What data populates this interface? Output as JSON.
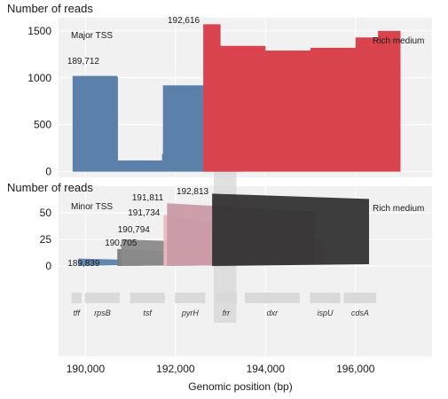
{
  "figure": {
    "xlabel": "Genomic position (bp)",
    "x_ticks": [
      "190,000",
      "192,000",
      "194,000",
      "196,000"
    ],
    "colors": {
      "rich_major_red": "#d9434e",
      "blue": "#5b81ab",
      "pink": "#eab7c0",
      "dark": "#333333",
      "mid_gray": "#8a8a8a",
      "highlight": "#d6d6d6",
      "gene": "#d9d9d9"
    }
  },
  "chart_data": [
    {
      "type": "area",
      "panel": "top",
      "title": "",
      "ylabel": "Number of reads",
      "panel_label": "Major TSS",
      "condition": "Rich medium",
      "ylim": [
        -60,
        1640
      ],
      "y_ticks": [
        0,
        500,
        1000,
        1500
      ],
      "xlim": [
        189400,
        197700
      ],
      "grid": true,
      "series": [
        {
          "name": "",
          "color": "#5b81ab",
          "tss": 189712,
          "tss_label": "189,712",
          "x": [
            189712,
            190700,
            190720,
            191700,
            191720,
            192800,
            193300,
            193500
          ],
          "y": [
            1020,
            1010,
            120,
            190,
            920,
            970,
            1010,
            1040
          ]
        },
        {
          "name": "",
          "color": "#d9434e",
          "tss": 192616,
          "tss_label": "192,616",
          "x": [
            192616,
            193000,
            194000,
            195000,
            196000,
            196500,
            197000
          ],
          "y": [
            1570,
            1340,
            1290,
            1320,
            1430,
            1500,
            1555
          ]
        }
      ]
    },
    {
      "type": "area",
      "panel": "bottom",
      "title": "",
      "ylabel": "Number of reads",
      "panel_label": "Minor TSS",
      "condition": "Rich medium",
      "ylim": [
        -15,
        75
      ],
      "y_ticks": [
        0,
        25,
        50
      ],
      "xlim": [
        189400,
        197700
      ],
      "grid": true,
      "series": [
        {
          "name": "",
          "color": "#5b81ab",
          "tss": 189839,
          "tss_label": "189,839",
          "x": [
            189839,
            191700
          ],
          "y": [
            7,
            5
          ]
        },
        {
          "name": "",
          "color": "#7d7d7d",
          "tss": 190705,
          "tss_label": "190,705",
          "x": [
            190705,
            193500
          ],
          "y": [
            16,
            10
          ]
        },
        {
          "name": "",
          "color": "#8a8a8a",
          "tss": 190794,
          "tss_label": "190,794",
          "x": [
            190794,
            195000
          ],
          "y": [
            25,
            19
          ]
        },
        {
          "name": "",
          "color": "#eab7c0",
          "tss": 191734,
          "tss_label": "191,734",
          "x": [
            191734,
            195300
          ],
          "y": [
            48,
            24
          ]
        },
        {
          "name": "",
          "color": "#c99aa6",
          "tss": 191811,
          "tss_label": "191,811",
          "x": [
            191811,
            195100
          ],
          "y": [
            59,
            51
          ]
        },
        {
          "name": "",
          "color": "#333333",
          "tss": 192813,
          "tss_label": "192,813",
          "x": [
            192813,
            196300
          ],
          "y": [
            68,
            63
          ]
        }
      ]
    }
  ],
  "genes": [
    {
      "name": "tff",
      "start": 189650,
      "end": 189950
    },
    {
      "name": "rpsB",
      "start": 189950,
      "end": 190800
    },
    {
      "name": "tsf",
      "start": 190950,
      "end": 191800
    },
    {
      "name": "pyrH",
      "start": 191950,
      "end": 192700
    },
    {
      "name": "frr",
      "start": 192850,
      "end": 193400
    },
    {
      "name": "dxr",
      "start": 193500,
      "end": 194800
    },
    {
      "name": "ispU",
      "start": 194950,
      "end": 195700
    },
    {
      "name": "cdsA",
      "start": 195700,
      "end": 196500
    }
  ],
  "highlight": {
    "gene": "frr",
    "start": 192850,
    "end": 193350
  }
}
